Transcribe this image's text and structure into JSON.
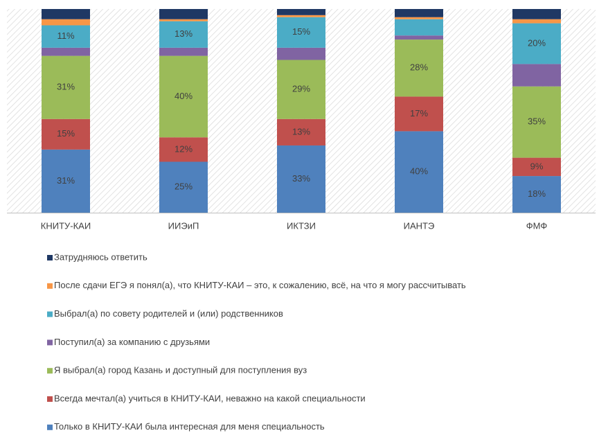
{
  "chart_data": {
    "type": "stacked_bar",
    "categories": [
      "КНИТУ-КАИ",
      "ИИЭиП",
      "ИКТЗИ",
      "ИАНТЭ",
      "ФМФ"
    ],
    "ylim": [
      0,
      100
    ],
    "series": [
      {
        "name": "Только в КНИТУ-КАИ была интересная для меня специальность",
        "color": "#4f81bd",
        "values": [
          31,
          25,
          33,
          40,
          18
        ],
        "value_labels": [
          "31%",
          "25%",
          "33%",
          "40%",
          "18%"
        ]
      },
      {
        "name": "Всегда мечтал(а) учиться в КНИТУ-КАИ, неважно на какой специальности",
        "color": "#c0504d",
        "values": [
          15,
          12,
          13,
          17,
          9
        ],
        "value_labels": [
          "15%",
          "12%",
          "13%",
          "17%",
          "9%"
        ]
      },
      {
        "name": "Я выбрал(а) город Казань и доступный для поступления вуз",
        "color": "#9bbb59",
        "values": [
          31,
          40,
          29,
          28,
          35
        ],
        "value_labels": [
          "31%",
          "40%",
          "29%",
          "28%",
          "35%"
        ]
      },
      {
        "name": "Поступил(а) за компанию с друзьями",
        "color": "#8064a2",
        "values": [
          4,
          4,
          6,
          2,
          11
        ],
        "value_labels": [
          null,
          null,
          null,
          null,
          null
        ]
      },
      {
        "name": "Выбрал(а) по совету родителей и (или) родственников",
        "color": "#4bacc6",
        "values": [
          11,
          13,
          15,
          8,
          20
        ],
        "value_labels": [
          "11%",
          "13%",
          "15%",
          null,
          "20%"
        ]
      },
      {
        "name": "После сдачи ЕГЭ я понял(а), что КНИТУ-КАИ – это, к сожалению, всё, на что я могу рассчитывать",
        "color": "#f79646",
        "values": [
          3,
          1,
          1,
          1,
          2
        ],
        "value_labels": [
          null,
          null,
          null,
          null,
          null
        ]
      },
      {
        "name": "Затрудняюсь ответить",
        "color": "#1f3864",
        "values": [
          5,
          5,
          3,
          4,
          5
        ],
        "value_labels": [
          null,
          null,
          null,
          null,
          null
        ]
      }
    ]
  }
}
